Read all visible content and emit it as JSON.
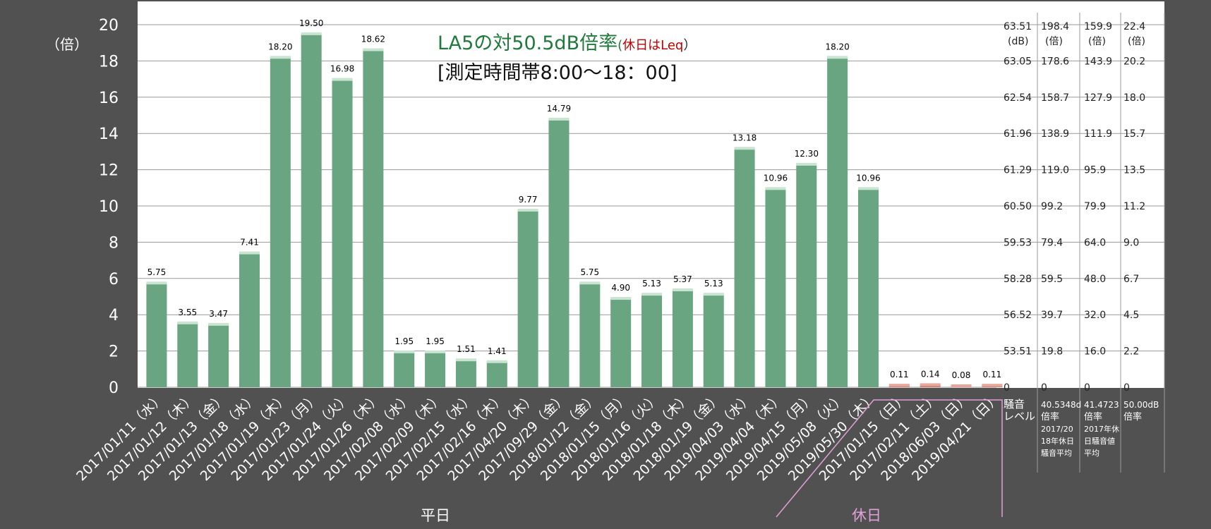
{
  "chart_data": {
    "type": "bar",
    "title": "LA5の対50.5dB倍率",
    "title_note": "(",
    "title_note_red": "休日はLeq",
    "title_note_end": "）",
    "subtitle": "[測定時間帯8:00～18：00]",
    "ylabel": "（倍）",
    "ylim": [
      0,
      20
    ],
    "yticks": [
      "0",
      "2",
      "4",
      "6",
      "8",
      "10",
      "12",
      "14",
      "16",
      "18",
      "20"
    ],
    "grid": true,
    "categories": [
      "2017/01/11（水）",
      "2017/01/12（木）",
      "2017/01/13（金）",
      "2017/01/18（水）",
      "2017/01/19（木）",
      "2017/01/23（月）",
      "2017/01/24（火）",
      "2017/01/26（木）",
      "2017/02/08（水）",
      "2017/02/09（木）",
      "2017/02/15（水）",
      "2017/02/16（木）",
      "2017/04/20（木）",
      "2017/09/29（金）",
      "2018/01/12（金）",
      "2018/01/15（月）",
      "2018/01/16（火）",
      "2018/01/18（木）",
      "2018/01/19（金）",
      "2019/04/03（水）",
      "2019/04/04（木）",
      "2019/04/15（月）",
      "2019/05/08（火）",
      "2019/05/30（木）",
      "2017/01/15（日）",
      "2017/02/11（土）",
      "2018/06/03（日）",
      "2019/04/21（日）"
    ],
    "values": [
      5.75,
      3.55,
      3.47,
      7.41,
      18.2,
      19.5,
      16.98,
      18.62,
      1.95,
      1.95,
      1.51,
      1.41,
      9.77,
      14.79,
      5.75,
      4.9,
      5.13,
      5.37,
      5.13,
      13.18,
      10.96,
      12.3,
      18.2,
      10.96,
      0.11,
      0.14,
      0.08,
      0.11
    ],
    "value_labels": [
      "5.75",
      "3.55",
      "3.47",
      "7.41",
      "18.20",
      "19.50",
      "16.98",
      "18.62",
      "1.95",
      "1.95",
      "1.51",
      "1.41",
      "9.77",
      "14.79",
      "5.75",
      "4.90",
      "5.13",
      "5.37",
      "5.13",
      "13.18",
      "10.96",
      "12.30",
      "18.20",
      "10.96",
      "0.11",
      "0.14",
      "0.08",
      "0.11"
    ],
    "weekday_count": 24,
    "group_labels": {
      "weekday": "平日",
      "holiday": "休日"
    },
    "colors": {
      "weekday_bar": "#6aa582",
      "holiday_bar": "#d07a6a",
      "title": "#1f7a3c",
      "note": "#c00000",
      "group_line": "#e0a0d8",
      "background": "#515151",
      "plot_bg": "#ffffff"
    },
    "right_table": {
      "columns": [
        {
          "header": [
            "63.51",
            "(dB)"
          ],
          "values": [
            "63.05",
            "62.54",
            "61.96",
            "61.29",
            "60.50",
            "59.53",
            "58.28",
            "56.52",
            "53.51",
            "0"
          ],
          "footer": [
            "騒音",
            "レベル"
          ]
        },
        {
          "header": [
            "198.4",
            "(倍)"
          ],
          "values": [
            "178.6",
            "158.7",
            "138.9",
            "119.0",
            "99.2",
            "79.4",
            "59.5",
            "39.7",
            "19.8",
            "0"
          ],
          "footer": [
            "40.5348d",
            "倍率",
            "2017/20",
            "18年休日",
            "騒音平均"
          ]
        },
        {
          "header": [
            "159.9",
            "(倍)"
          ],
          "values": [
            "143.9",
            "127.9",
            "111.9",
            "95.9",
            "79.9",
            "64.0",
            "48.0",
            "32.0",
            "16.0",
            "0"
          ],
          "footer": [
            "41.4723",
            "倍率",
            "2017年休",
            "日騒音値",
            "平均"
          ]
        },
        {
          "header": [
            "22.4",
            "(倍)"
          ],
          "values": [
            "20.2",
            "18.0",
            "15.7",
            "13.5",
            "11.2",
            "9.0",
            "6.7",
            "4.5",
            "2.2",
            "0"
          ],
          "footer": [
            "50.00dB",
            "倍率"
          ]
        }
      ]
    }
  }
}
